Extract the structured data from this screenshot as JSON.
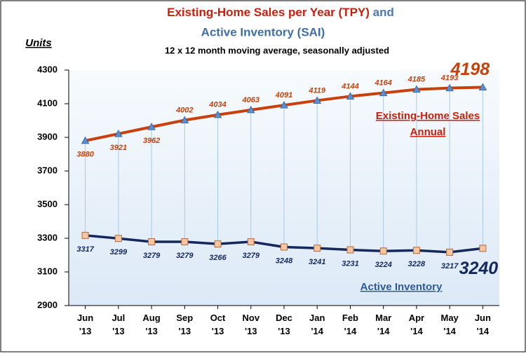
{
  "chart_data": {
    "type": "line",
    "title": "Existing-Home Sales per Year (TPY)",
    "title_and": "and",
    "title_line2": "Active Inventory (SAI)",
    "subtitle": "12 x 12 month moving average, seasonally adjusted",
    "y_label": "Units",
    "categories": [
      [
        "Jun",
        "'13"
      ],
      [
        "Jul",
        "'13"
      ],
      [
        "Aug",
        "'13"
      ],
      [
        "Sep",
        "'13"
      ],
      [
        "Oct",
        "'13"
      ],
      [
        "Nov",
        "'13"
      ],
      [
        "Dec",
        "'13"
      ],
      [
        "Jan",
        "'14"
      ],
      [
        "Feb",
        "'14"
      ],
      [
        "Mar",
        "'14"
      ],
      [
        "Apr",
        "'14"
      ],
      [
        "May",
        "'14"
      ],
      [
        "Jun",
        "'14"
      ]
    ],
    "series": [
      {
        "name": "Existing-Home Sales",
        "color": "#c8400c",
        "marker_color": "#5b8fd0",
        "values": [
          3880,
          3921,
          3962,
          4002,
          4034,
          4063,
          4091,
          4119,
          4144,
          4164,
          4185,
          4193,
          4198
        ]
      },
      {
        "name": "Active Inventory",
        "color": "#14285e",
        "marker_color": "#f5c6a0",
        "values": [
          3317,
          3299,
          3279,
          3279,
          3266,
          3279,
          3248,
          3241,
          3231,
          3224,
          3228,
          3217,
          3240
        ]
      }
    ],
    "annotation": "Annual",
    "ylim": [
      2900,
      4300
    ],
    "yticks": [
      2900,
      3100,
      3300,
      3500,
      3700,
      3900,
      4100,
      4300
    ]
  }
}
